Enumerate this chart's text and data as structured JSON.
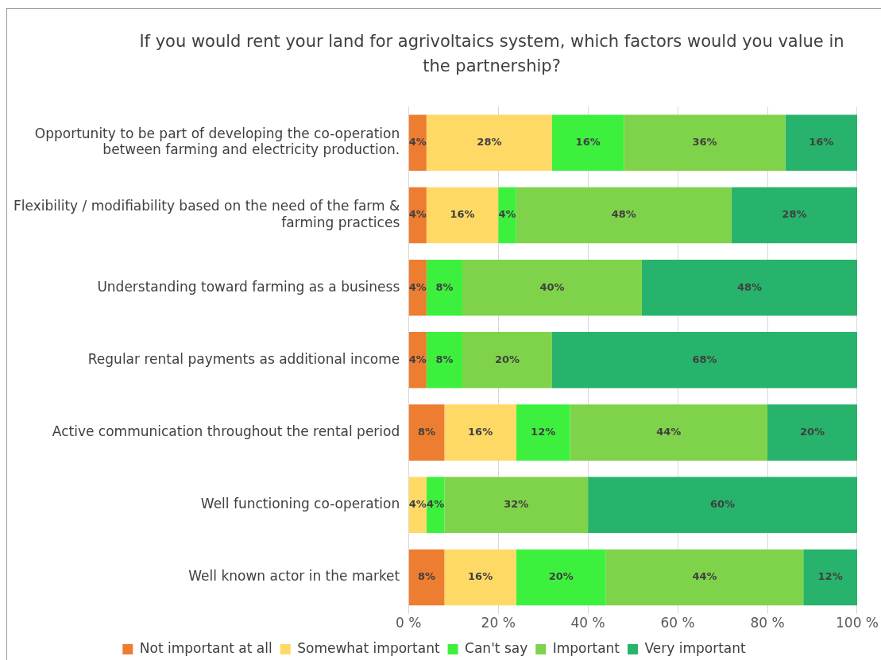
{
  "chart_data": {
    "type": "bar",
    "orientation": "horizontal",
    "stacked": true,
    "title": "If you would rent your land for agrivoltaics system, which factors would you value in the partnership?",
    "categories": [
      "Opportunity to be part of developing the co-operation between farming and electricity production.",
      "Flexibility / modifiability based on the need of the farm & farming practices",
      "Understanding toward farming as a business",
      "Regular rental payments as additional income",
      "Active communication throughout the rental period",
      "Well functioning co-operation",
      "Well known actor in the market"
    ],
    "series": [
      {
        "name": "Not important at all",
        "color": "#ed7d31",
        "values": [
          4,
          4,
          4,
          4,
          8,
          null,
          8
        ],
        "value_labels": [
          "4%",
          "4%",
          "4%",
          "4%",
          "8%",
          null,
          "8%"
        ]
      },
      {
        "name": "Somewhat important",
        "color": "#ffd966",
        "values": [
          28,
          16,
          null,
          null,
          16,
          4,
          16
        ],
        "value_labels": [
          "28%",
          "16%",
          null,
          null,
          "16%",
          "4%",
          "16%"
        ]
      },
      {
        "name": "Can't say",
        "color": "#3ef03e",
        "values": [
          16,
          4,
          8,
          8,
          12,
          4,
          20
        ],
        "value_labels": [
          "16%",
          "4%",
          "8%",
          "8%",
          "12%",
          "4%",
          "20%"
        ]
      },
      {
        "name": "Important",
        "color": "#7fd34a",
        "values": [
          36,
          48,
          40,
          20,
          44,
          32,
          44
        ],
        "value_labels": [
          "36%",
          "48%",
          "40%",
          "20%",
          "44%",
          "32%",
          "44%"
        ]
      },
      {
        "name": "Very important",
        "color": "#27b36b",
        "values": [
          16,
          28,
          48,
          68,
          20,
          60,
          12
        ],
        "value_labels": [
          "16%",
          "28%",
          "48%",
          "68%",
          "20%",
          "60%",
          "12%"
        ]
      }
    ],
    "xlim": [
      0,
      100
    ],
    "xticks": [
      {
        "value": 0,
        "label": "0 %"
      },
      {
        "value": 20,
        "label": "20 %"
      },
      {
        "value": 40,
        "label": "40 %"
      },
      {
        "value": 60,
        "label": "60 %"
      },
      {
        "value": 80,
        "label": "80 %"
      },
      {
        "value": 100,
        "label": "100 %"
      }
    ],
    "grid": "x",
    "legend": "bottom"
  }
}
